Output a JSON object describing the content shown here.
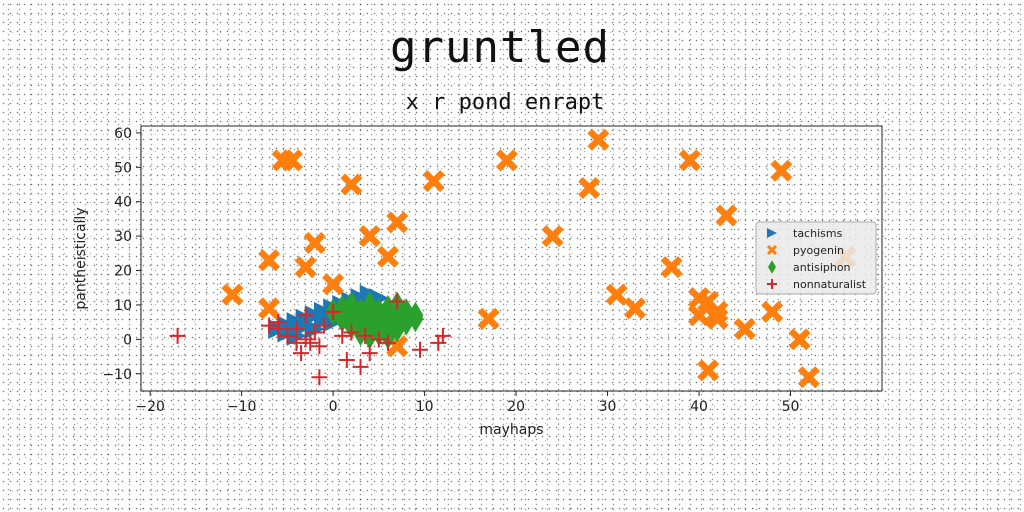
{
  "chart_data": {
    "type": "scatter",
    "title": "gruntled",
    "subtitle": "x r pond enrapt",
    "xlabel": "mayhaps",
    "ylabel": "pantheistically",
    "xlim": [
      -21,
      60
    ],
    "ylim": [
      -15,
      62
    ],
    "xticks": [
      -20,
      -10,
      0,
      10,
      20,
      30,
      40,
      50
    ],
    "yticks": [
      -10,
      0,
      10,
      20,
      30,
      40,
      50,
      60
    ],
    "grid": false,
    "legend_position": "center-right",
    "series": [
      {
        "name": "tachisms",
        "marker": "triangle-right",
        "color": "#1f77b4",
        "points": [
          [
            -6,
            3
          ],
          [
            -5,
            4
          ],
          [
            -4,
            5
          ],
          [
            -3,
            6
          ],
          [
            -2,
            7
          ],
          [
            -1,
            8
          ],
          [
            0,
            9
          ],
          [
            1,
            10
          ],
          [
            2,
            11
          ],
          [
            3,
            12
          ],
          [
            4,
            13
          ],
          [
            -5,
            2
          ],
          [
            -3,
            4
          ],
          [
            -1,
            6
          ],
          [
            1,
            8
          ],
          [
            3,
            10
          ],
          [
            5,
            12
          ],
          [
            -4,
            1
          ],
          [
            -2,
            3
          ],
          [
            0,
            5
          ],
          [
            2,
            7
          ],
          [
            4,
            9
          ]
        ]
      },
      {
        "name": "pyogenin",
        "marker": "x-thick",
        "color": "#ff7f0e",
        "points": [
          [
            -5.5,
            52
          ],
          [
            -4.5,
            52
          ],
          [
            2,
            45
          ],
          [
            11,
            46
          ],
          [
            19,
            52
          ],
          [
            29,
            58
          ],
          [
            28,
            44
          ],
          [
            39,
            52
          ],
          [
            49,
            49
          ],
          [
            43,
            36
          ],
          [
            24,
            30
          ],
          [
            4,
            30
          ],
          [
            -7,
            23
          ],
          [
            -2,
            28
          ],
          [
            -3,
            21
          ],
          [
            7,
            34
          ],
          [
            6,
            24
          ],
          [
            0,
            16
          ],
          [
            -11,
            13
          ],
          [
            -7,
            9
          ],
          [
            37,
            21
          ],
          [
            31,
            13
          ],
          [
            33,
            9
          ],
          [
            40,
            12
          ],
          [
            41,
            11
          ],
          [
            40,
            7
          ],
          [
            42,
            6
          ],
          [
            42,
            8
          ],
          [
            45,
            3
          ],
          [
            48,
            8
          ],
          [
            51,
            0
          ],
          [
            52,
            -11
          ],
          [
            41,
            -9
          ],
          [
            56,
            24
          ],
          [
            17,
            6
          ],
          [
            7,
            -2
          ]
        ]
      },
      {
        "name": "antisiphon",
        "marker": "diamond",
        "color": "#2ca02c",
        "points": [
          [
            0,
            8
          ],
          [
            1,
            9
          ],
          [
            1,
            6
          ],
          [
            2,
            7
          ],
          [
            2,
            4
          ],
          [
            3,
            8
          ],
          [
            3,
            5
          ],
          [
            3,
            2
          ],
          [
            4,
            7
          ],
          [
            4,
            4
          ],
          [
            4,
            1
          ],
          [
            5,
            8
          ],
          [
            5,
            5
          ],
          [
            5,
            2
          ],
          [
            6,
            7
          ],
          [
            6,
            4
          ],
          [
            6,
            1
          ],
          [
            7,
            6
          ],
          [
            7,
            3
          ],
          [
            8,
            8
          ],
          [
            8,
            5
          ],
          [
            9,
            7
          ],
          [
            9,
            6
          ],
          [
            2,
            10
          ],
          [
            4,
            10
          ],
          [
            6,
            9
          ],
          [
            7,
            10
          ]
        ]
      },
      {
        "name": "nonnaturalist",
        "marker": "plus",
        "color": "#d62728",
        "points": [
          [
            -17,
            1
          ],
          [
            -7,
            4
          ],
          [
            -6,
            5
          ],
          [
            -6,
            3
          ],
          [
            -5,
            1
          ],
          [
            -4,
            -1
          ],
          [
            -4,
            3
          ],
          [
            -3.5,
            -4
          ],
          [
            -3,
            7
          ],
          [
            -3,
            0
          ],
          [
            -2.5,
            -1
          ],
          [
            -2,
            2
          ],
          [
            -1.5,
            -2
          ],
          [
            -1,
            4
          ],
          [
            -1.5,
            -11
          ],
          [
            0,
            8
          ],
          [
            1,
            1
          ],
          [
            1.5,
            -6
          ],
          [
            2,
            2
          ],
          [
            3,
            -8
          ],
          [
            3.5,
            1
          ],
          [
            4,
            -4
          ],
          [
            5,
            0
          ],
          [
            6,
            -1
          ],
          [
            7,
            11
          ],
          [
            9.5,
            -3
          ],
          [
            11.5,
            -1
          ],
          [
            12,
            1
          ]
        ]
      }
    ]
  }
}
